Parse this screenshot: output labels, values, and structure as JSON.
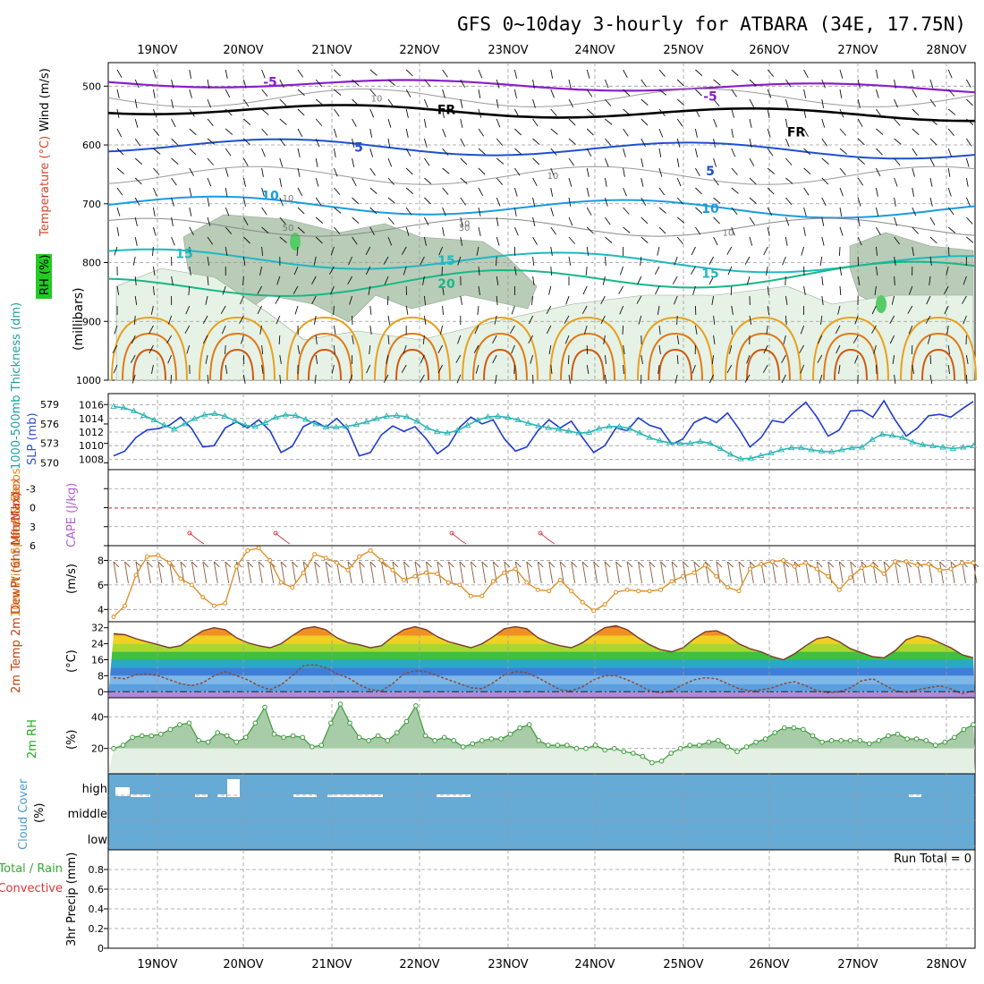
{
  "title": "GFS 0~10day 3-hourly for ATBARA (34E, 17.75N)",
  "dates": [
    "19NOV",
    "20NOV",
    "21NOV",
    "22NOV",
    "23NOV",
    "24NOV",
    "25NOV",
    "26NOV",
    "27NOV",
    "28NOV"
  ],
  "colors": {
    "grid": "#9a9a9a",
    "rh_fill_light": "#e6f2e6",
    "rh_fill_mid": "#b8ccb8",
    "rh_fill_dark": "#8fa88f",
    "slp_line": "#1f3ccc",
    "thickness_line": "#2bb5b5",
    "wind_line": "#e08a1a",
    "temp_fill": "#e35a1a",
    "dewpt_line": "#8a4a3a",
    "rh2m_fill": "#6cb86c",
    "cloud_fill": "#66aad6",
    "cape_line": "#d04040",
    "lifted_zero": "#e05050"
  },
  "chart_data": [
    {
      "type": "line",
      "panel": "upper-air",
      "ylabel_parts": [
        "RH (%)",
        "Temperature (°C)",
        "Wind (m/s)"
      ],
      "yunit": "(millibars)",
      "y_ticks": [
        "500",
        "600",
        "700",
        "800",
        "900",
        "1000"
      ],
      "ylim": [
        460,
        1000
      ],
      "contour_labels": [
        {
          "text": "-5",
          "date": "20NOV",
          "p": 493,
          "color": "#8a1ec8"
        },
        {
          "text": "-5",
          "date": "25NOV",
          "p": 517,
          "color": "#8a1ec8"
        },
        {
          "text": "FR",
          "date": "22NOV",
          "p": 540,
          "color": "#000000"
        },
        {
          "text": "FR",
          "date": "26NOV",
          "p": 578,
          "color": "#000000"
        },
        {
          "text": "5",
          "date": "21NOV",
          "p": 604,
          "color": "#1f4fd0"
        },
        {
          "text": "5",
          "date": "25NOV",
          "p": 644,
          "color": "#1f4fd0"
        },
        {
          "text": "10",
          "date": "20NOV",
          "p": 686,
          "color": "#1a9be0"
        },
        {
          "text": "10",
          "date": "25NOV",
          "p": 708,
          "color": "#1a9be0"
        },
        {
          "text": "15",
          "date": "19NOV",
          "p": 785,
          "color": "#20b8c0"
        },
        {
          "text": "15",
          "date": "22NOV",
          "p": 796,
          "color": "#20b8c0"
        },
        {
          "text": "15",
          "date": "25NOV",
          "p": 818,
          "color": "#20b8c0"
        },
        {
          "text": "20",
          "date": "22NOV",
          "p": 836,
          "color": "#18b888"
        }
      ],
      "rh_labels": [
        {
          "text": "10",
          "date": "21NOV",
          "p": 520
        },
        {
          "text": "10",
          "date": "23NOV",
          "p": 652
        },
        {
          "text": "10",
          "date": "20NOV",
          "p": 690
        },
        {
          "text": "10",
          "date": "22NOV",
          "p": 733
        },
        {
          "text": "10",
          "date": "25NOV",
          "p": 748
        },
        {
          "text": "30",
          "date": "22NOV",
          "p": 740
        },
        {
          "text": "50",
          "date": "20NOV",
          "p": 740
        }
      ]
    },
    {
      "type": "line",
      "panel": "thickness-slp",
      "ylabel_left": "1000-500mb Thickness (dm)",
      "ylabel_right": "SLP (mb)",
      "y_left_ticks": [
        "570",
        "573",
        "576",
        "579"
      ],
      "y_right_ticks": [
        "1008",
        "1010",
        "1012",
        "1014",
        "1016"
      ],
      "series": [
        {
          "name": "SLP (mb)",
          "values": [
            1008.5,
            1009.2,
            1011.2,
            1012.3,
            1012.5,
            1013.0,
            1014.2,
            1012.5,
            1009.8,
            1010.0,
            1012.6,
            1013.5,
            1012.6,
            1013.8,
            1012.2,
            1009.0,
            1009.9,
            1012.8,
            1013.6,
            1012.7,
            1014.0,
            1012.3,
            1008.5,
            1009.0,
            1011.6,
            1012.9,
            1012.1,
            1012.8,
            1011.0,
            1008.8,
            1010.0,
            1012.7,
            1014.2,
            1013.2,
            1013.8,
            1011.0,
            1009.2,
            1009.8,
            1012.2,
            1013.8,
            1012.6,
            1013.6,
            1011.2,
            1009.0,
            1010.0,
            1012.6,
            1012.2,
            1014.1,
            1013.0,
            1012.5,
            1010.2,
            1011.0,
            1013.4,
            1014.2,
            1013.4,
            1014.8,
            1012.5,
            1009.8,
            1011.2,
            1013.7,
            1013.4,
            1015.0,
            1016.4,
            1014.2,
            1011.4,
            1012.3,
            1015.1,
            1015.2,
            1014.2,
            1016.6,
            1013.8,
            1011.4,
            1012.6,
            1014.4,
            1014.6,
            1014.2,
            1015.4,
            1016.5
          ]
        },
        {
          "name": "Thickness (dm)",
          "values": [
            578.7,
            578.5,
            578.0,
            577.3,
            576.6,
            575.8,
            575.2,
            576.0,
            576.8,
            577.4,
            577.6,
            577.2,
            576.5,
            575.8,
            575.6,
            576.2,
            577.0,
            577.4,
            577.3,
            576.7,
            576.0,
            575.5,
            575.5,
            575.6,
            575.9,
            576.3,
            576.8,
            577.2,
            577.3,
            577.1,
            576.4,
            575.4,
            574.8,
            574.6,
            575.0,
            575.8,
            576.6,
            577.1,
            577.2,
            577.0,
            576.6,
            576.1,
            575.7,
            575.4,
            575.2,
            574.9,
            574.6,
            574.7,
            575.3,
            575.6,
            575.6,
            575.3,
            574.6,
            573.9,
            573.4,
            573.1,
            573.0,
            573.0,
            573.3,
            573.0,
            572.2,
            571.3,
            570.6,
            570.7,
            571.1,
            571.5,
            572.0,
            572.3,
            572.3,
            572.0,
            571.8,
            571.7,
            572.0,
            572.3,
            572.4,
            573.6,
            574.4,
            574.2,
            573.9,
            573.2,
            572.8,
            572.6,
            572.4,
            572.2,
            572.4,
            572.6
          ]
        }
      ]
    },
    {
      "type": "line",
      "panel": "stability",
      "ylabel_left": "Lifted Index",
      "ylabel_right": "CAPE (J/kg)",
      "y_ticks": [
        "-3",
        "0",
        "3",
        "6"
      ],
      "ylim": [
        -6,
        6
      ],
      "markers_dates": [
        "19NOV",
        "20NOV",
        "22NOV",
        "23NOV"
      ]
    },
    {
      "type": "line",
      "panel": "wind10m",
      "ylabel": "10m Wind Speed & Barbs",
      "yunit": "(m/s)",
      "y_ticks": [
        "4",
        "6",
        "8"
      ],
      "ylim": [
        3,
        9.2
      ],
      "series": [
        {
          "name": "10m Wind Speed",
          "values": [
            3.4,
            4.3,
            6.8,
            8.3,
            8.4,
            7.8,
            6.5,
            6.0,
            5.0,
            4.3,
            4.5,
            7.5,
            8.8,
            9.0,
            8.0,
            6.2,
            5.8,
            7.0,
            8.5,
            8.2,
            7.8,
            7.2,
            8.3,
            8.8,
            8.0,
            7.2,
            6.4,
            6.7,
            7.0,
            6.9,
            6.2,
            6.0,
            5.1,
            5.1,
            6.3,
            7.0,
            7.3,
            6.2,
            5.6,
            5.5,
            6.4,
            5.5,
            4.6,
            3.9,
            4.4,
            5.4,
            5.6,
            5.5,
            5.5,
            5.6,
            6.3,
            6.7,
            7.0,
            7.6,
            6.7,
            5.8,
            5.5,
            7.3,
            7.7,
            7.9,
            8.0,
            7.5,
            7.8,
            7.3,
            6.7,
            5.6,
            6.6,
            7.4,
            7.6,
            6.9,
            7.9,
            7.9,
            7.6,
            7.7,
            7.2,
            7.3,
            7.8,
            7.8
          ]
        }
      ]
    },
    {
      "type": "area",
      "panel": "temperature",
      "ylabel": "2m Temp 2m DewPt (6hr Min/Max)",
      "yunit": "(°C)",
      "y_ticks": [
        "0",
        "8",
        "16",
        "24",
        "32"
      ],
      "ylim": [
        -3,
        35
      ],
      "series": [
        {
          "name": "2m Temp",
          "values": [
            29,
            28.5,
            26.5,
            25.0,
            23.5,
            22.0,
            23.0,
            27.0,
            30.5,
            32.0,
            31.0,
            27.0,
            24.5,
            23.0,
            22.0,
            24.0,
            28.0,
            31.5,
            32.5,
            31.0,
            27.0,
            24.5,
            23.5,
            22.0,
            23.0,
            27.5,
            31.0,
            32.5,
            31.0,
            27.5,
            25.0,
            23.5,
            22.0,
            24.0,
            27.5,
            31.5,
            32.5,
            31.5,
            27.0,
            24.5,
            23.0,
            22.0,
            24.5,
            28.5,
            32.0,
            33.0,
            31.0,
            27.0,
            23.5,
            21.0,
            20.0,
            22.0,
            26.5,
            30.0,
            30.5,
            28.0,
            24.0,
            21.5,
            20.0,
            17.5,
            16.0,
            19.0,
            23.0,
            26.5,
            27.5,
            25.0,
            21.5,
            19.5,
            17.5,
            17.0,
            20.5,
            26.0,
            28.0,
            27.0,
            24.5,
            22.0,
            18.5,
            17.0
          ]
        },
        {
          "name": "2m DewPt",
          "values": [
            7.0,
            6.5,
            8.5,
            9.0,
            8.0,
            6.0,
            4.0,
            3.0,
            4.5,
            8.0,
            10.0,
            8.0,
            6.0,
            3.0,
            1.0,
            3.5,
            8.0,
            13.0,
            13.5,
            12.0,
            9.0,
            7.0,
            3.5,
            1.0,
            0.5,
            4.0,
            9.0,
            10.5,
            10.0,
            8.0,
            6.0,
            4.0,
            2.0,
            1.5,
            4.5,
            8.5,
            10.0,
            9.5,
            7.0,
            4.0,
            1.0,
            0.5,
            2.5,
            6.0,
            8.0,
            8.0,
            6.0,
            3.5,
            0.5,
            -0.5,
            0.5,
            3.5,
            6.0,
            7.0,
            6.5,
            4.0,
            1.5,
            0.5,
            1.0,
            2.0,
            4.0,
            5.0,
            3.0,
            0.5,
            -0.5,
            0.0,
            2.0,
            5.5,
            6.5,
            3.5,
            0.5,
            -0.3,
            1.0,
            2.0,
            3.0,
            1.5,
            -1.0,
            0.5
          ]
        }
      ]
    },
    {
      "type": "area",
      "panel": "rh2m",
      "ylabel": "2m RH",
      "yunit": "(%)",
      "y_ticks": [
        "20",
        "40"
      ],
      "ylim": [
        4,
        52
      ],
      "series": [
        {
          "name": "2m RH",
          "values": [
            20,
            22,
            27,
            28,
            28,
            29,
            32,
            35,
            36,
            25,
            24,
            30,
            28,
            24,
            27,
            36,
            46,
            29,
            27,
            28,
            27,
            21,
            22,
            36,
            48,
            36,
            27,
            25,
            28,
            25,
            30,
            37,
            47,
            28,
            25,
            27,
            25,
            21,
            23,
            25,
            26,
            26,
            29,
            33,
            35,
            25,
            22,
            22,
            22,
            20,
            20,
            22,
            19,
            20,
            18,
            17,
            15,
            11,
            12,
            17,
            20,
            22,
            22,
            24,
            25,
            21,
            18,
            21,
            24,
            26,
            30,
            33,
            33,
            32,
            28,
            24,
            25,
            25,
            25,
            25,
            23,
            25,
            28,
            29,
            26,
            26,
            25,
            22,
            24,
            27,
            32,
            35
          ]
        }
      ]
    },
    {
      "type": "area",
      "panel": "cloud",
      "ylabel": "Cloud Cover",
      "yunit": "(%)",
      "y_ticks": [
        "high",
        "middle",
        "low"
      ]
    },
    {
      "type": "bar",
      "panel": "precip",
      "ylabel_left": "Total / Rain",
      "ylabel_sub": "Convective",
      "ylabel": "3hr Precip (mm)",
      "y_ticks": [
        "0",
        "0.2",
        "0.4",
        "0.6",
        "0.8"
      ],
      "ylim": [
        0,
        1
      ],
      "run_total": "Run Total = 0",
      "values": []
    }
  ]
}
